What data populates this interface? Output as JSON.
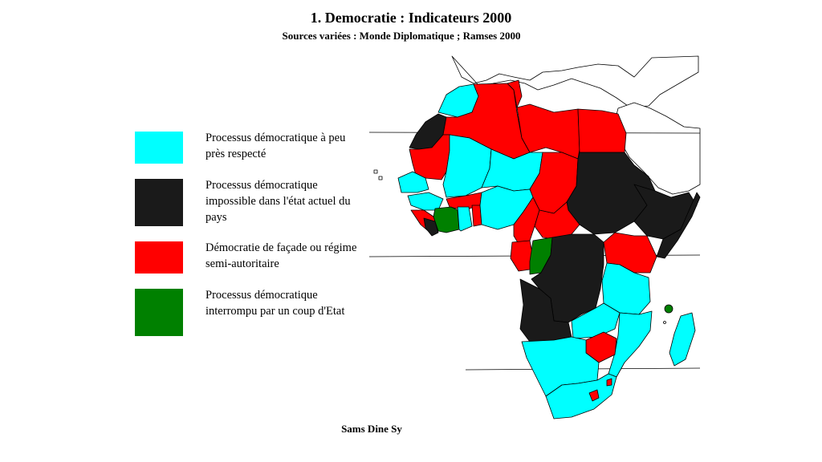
{
  "title": "1. Democratie : Indicateurs 2000",
  "subtitle": "Sources variées : Monde Diplomatique ; Ramses 2000",
  "legend": [
    {
      "color": "#00FFFF",
      "label": "Processus démocratique à peu près respecté"
    },
    {
      "color": "#1A1A1A",
      "label": "Processus démocratique impossible dans l'état actuel du pays"
    },
    {
      "color": "#FF0000",
      "label": "Démocratie de façade ou régime semi-autoritaire"
    },
    {
      "color": "#008000",
      "label": "Processus démocratique interrompu par un coup d'Etat"
    }
  ],
  "author": "Sams Dine Sy"
}
